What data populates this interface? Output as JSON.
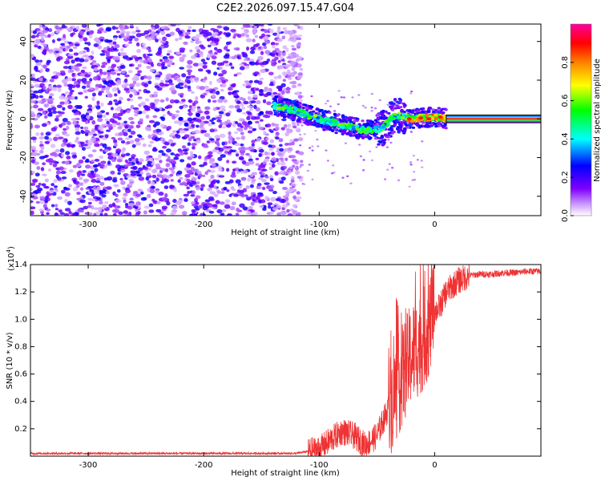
{
  "chart_data": [
    {
      "type": "heatmap",
      "title": "C2E2.2026.097.15.47.G04",
      "xlabel": "Height of straight line (km)",
      "ylabel": "Frequency (Hz)",
      "xlim": [
        -350,
        92
      ],
      "ylim": [
        -50,
        49
      ],
      "xticks": [
        -300,
        -200,
        -100,
        0
      ],
      "xtick_labels": [
        "-300",
        "-200",
        "-100",
        "0"
      ],
      "yticks": [
        -40,
        -20,
        0,
        20,
        40
      ],
      "ytick_labels": [
        "-40",
        "-20",
        "0",
        "20",
        "40"
      ],
      "colorbar": {
        "label": "Normalized spectral amplitude",
        "range": [
          0,
          1
        ],
        "ticks": [
          0.0,
          0.2,
          0.4,
          0.6,
          0.8
        ],
        "tick_labels": [
          "0.0",
          "0.2",
          "0.4",
          "0.6",
          "0.8"
        ],
        "colors": [
          "#ffffff",
          "#8000ff",
          "#0000ff",
          "#00ffff",
          "#00ff00",
          "#ffff00",
          "#ff8000",
          "#ff0000",
          "#ff00a0"
        ]
      },
      "features": {
        "noise_region_x": [
          -350,
          -115
        ],
        "signal_track": [
          {
            "x": -140,
            "f": 7
          },
          {
            "x": -120,
            "f": 4
          },
          {
            "x": -100,
            "f": 0
          },
          {
            "x": -80,
            "f": -3
          },
          {
            "x": -60,
            "f": -6
          },
          {
            "x": -45,
            "f": -5
          },
          {
            "x": -35,
            "f": 2
          },
          {
            "x": -20,
            "f": 0
          },
          {
            "x": 0,
            "f": 1
          },
          {
            "x": 10,
            "f": 0
          }
        ],
        "line_region_x": [
          10,
          92
        ],
        "line_frequency": 0
      }
    },
    {
      "type": "line",
      "title": "",
      "xlabel": "Height of straight line (km)",
      "ylabel": "SNR (10 * v/v)",
      "yscale_label": "(x10",
      "yscale_exponent": "4",
      "yscale_suffix": ")",
      "xlim": [
        -350,
        92
      ],
      "ylim": [
        0,
        1.4
      ],
      "xticks": [
        -300,
        -200,
        -100,
        0
      ],
      "xtick_labels": [
        "-300",
        "-200",
        "-100",
        "0"
      ],
      "yticks": [
        0.2,
        0.4,
        0.6,
        0.8,
        1.0,
        1.2,
        1.4
      ],
      "ytick_labels": [
        "0.2",
        "0.4",
        "0.6",
        "0.8",
        "1.0",
        "1.2",
        "1.4"
      ],
      "series": [
        {
          "name": "SNR",
          "color": "#ee3333",
          "x": [
            -350,
            -300,
            -250,
            -200,
            -150,
            -120,
            -100,
            -90,
            -80,
            -70,
            -60,
            -50,
            -40,
            -30,
            -20,
            -15,
            -10,
            -5,
            0,
            5,
            10,
            20,
            30,
            40,
            50,
            60,
            70,
            80,
            92
          ],
          "y": [
            0.02,
            0.02,
            0.02,
            0.02,
            0.02,
            0.02,
            0.05,
            0.12,
            0.18,
            0.15,
            0.08,
            0.15,
            0.35,
            0.55,
            0.75,
            0.8,
            0.85,
            0.95,
            1.05,
            1.1,
            1.2,
            1.28,
            1.32,
            1.33,
            1.33,
            1.34,
            1.34,
            1.35,
            1.35
          ]
        }
      ]
    }
  ]
}
